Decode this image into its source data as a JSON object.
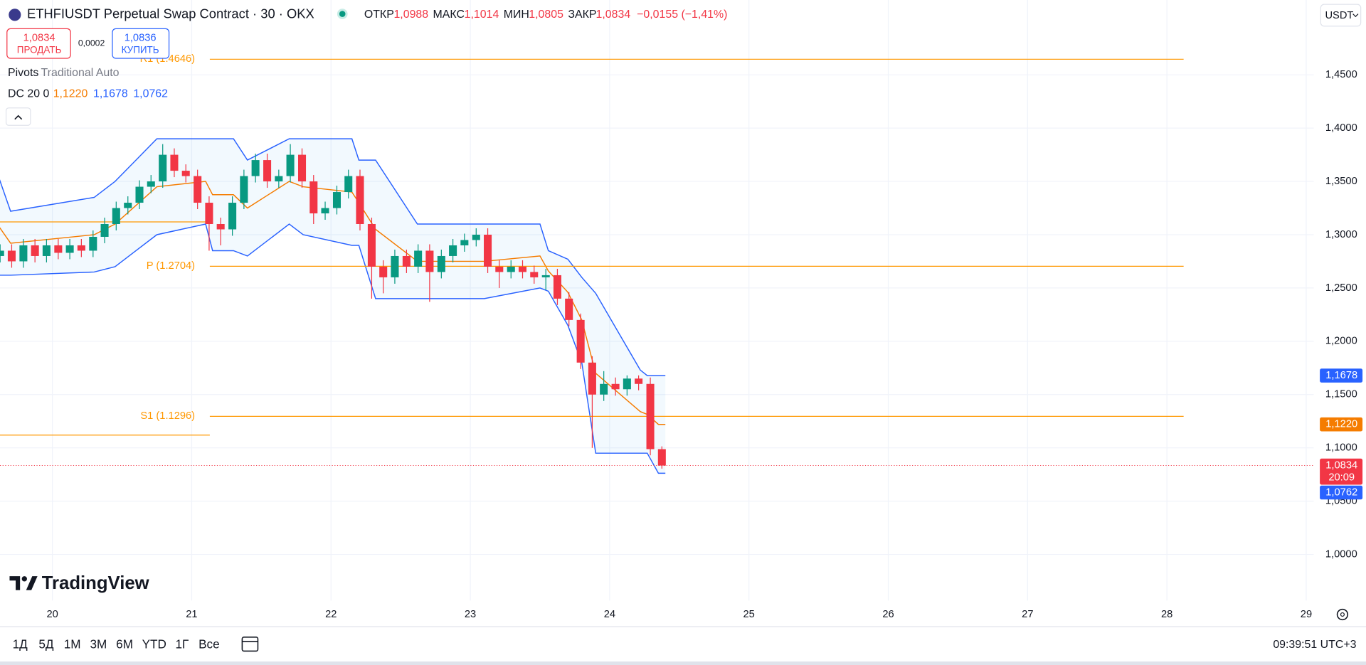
{
  "header": {
    "symbol": "ETHFIUSDT Perpetual Swap Contract · 30 · OKX",
    "open_label": "ОТКР",
    "open": "1,0988",
    "high_label": "МАКС",
    "high": "1,1014",
    "low_label": "МИН",
    "low": "1,0805",
    "close_label": "ЗАКР",
    "close": "1,0834",
    "change": "−0,0155 (−1,41%)"
  },
  "trade": {
    "sell_price": "1,0834",
    "sell": "ПРОДАТЬ",
    "spread": "0,0002",
    "buy_price": "1,0836",
    "buy": "КУПИТЬ"
  },
  "indicators": {
    "pivots_name": "Pivots",
    "pivots_params": "Traditional Auto",
    "dc_name": "DC 20 0",
    "dc_middle": "1,1220",
    "dc_upper": "1,1678",
    "dc_lower": "1,0762"
  },
  "currency": "USDT",
  "logo": "TradingView",
  "toolbar": {
    "ranges": [
      "1Д",
      "5Д",
      "1М",
      "3М",
      "6М",
      "YTD",
      "1Г",
      "Все"
    ],
    "clock": "09:39:51 UTC+3"
  },
  "chart_data": {
    "type": "candlestick",
    "up_color": "#089981",
    "down_color": "#f23645",
    "grid": true,
    "xlim": [
      19.624,
      29.054
    ],
    "ylim": [
      0.9567,
      1.5202
    ],
    "xticks": [
      20,
      21,
      22,
      23,
      24,
      25,
      26,
      27,
      28,
      29
    ],
    "yticks": [
      {
        "value": 1.0,
        "label": "1,0000"
      },
      {
        "value": 1.05,
        "label": "1,0500"
      },
      {
        "value": 1.1,
        "label": "1,1000"
      },
      {
        "value": 1.15,
        "label": "1,1500"
      },
      {
        "value": 1.2,
        "label": "1,2000"
      },
      {
        "value": 1.25,
        "label": "1,2500"
      },
      {
        "value": 1.3,
        "label": "1,3000"
      },
      {
        "value": 1.35,
        "label": "1,3500"
      },
      {
        "value": 1.4,
        "label": "1,4000"
      },
      {
        "value": 1.45,
        "label": "1,4500"
      }
    ],
    "x": [
      19.625,
      19.708,
      19.792,
      19.875,
      19.958,
      20.042,
      20.125,
      20.208,
      20.292,
      20.375,
      20.458,
      20.542,
      20.625,
      20.708,
      20.792,
      20.875,
      20.958,
      21.042,
      21.125,
      21.208,
      21.292,
      21.375,
      21.458,
      21.542,
      21.625,
      21.708,
      21.792,
      21.875,
      21.958,
      22.042,
      22.125,
      22.208,
      22.292,
      22.375,
      22.458,
      22.542,
      22.625,
      22.708,
      22.792,
      22.875,
      22.958,
      23.042,
      23.125,
      23.208,
      23.292,
      23.375,
      23.458,
      23.542,
      23.625,
      23.708,
      23.792,
      23.875,
      23.958,
      24.042,
      24.125,
      24.208,
      24.292,
      24.375
    ],
    "open": [
      1.28,
      1.285,
      1.275,
      1.29,
      1.28,
      1.29,
      1.283,
      1.29,
      1.285,
      1.298,
      1.31,
      1.325,
      1.33,
      1.345,
      1.35,
      1.375,
      1.36,
      1.355,
      1.33,
      1.31,
      1.305,
      1.33,
      1.355,
      1.37,
      1.35,
      1.355,
      1.375,
      1.35,
      1.32,
      1.325,
      1.34,
      1.355,
      1.31,
      1.27,
      1.26,
      1.28,
      1.27,
      1.285,
      1.265,
      1.28,
      1.29,
      1.295,
      1.3,
      1.27,
      1.265,
      1.27,
      1.265,
      1.26,
      1.262,
      1.24,
      1.22,
      1.18,
      1.15,
      1.16,
      1.155,
      1.165,
      1.16,
      1.0988
    ],
    "high": [
      1.291,
      1.291,
      1.296,
      1.296,
      1.296,
      1.296,
      1.296,
      1.296,
      1.304,
      1.316,
      1.331,
      1.336,
      1.351,
      1.356,
      1.385,
      1.381,
      1.366,
      1.361,
      1.336,
      1.316,
      1.336,
      1.361,
      1.376,
      1.376,
      1.361,
      1.385,
      1.381,
      1.356,
      1.331,
      1.346,
      1.361,
      1.361,
      1.316,
      1.276,
      1.286,
      1.286,
      1.291,
      1.291,
      1.286,
      1.296,
      1.301,
      1.306,
      1.306,
      1.276,
      1.276,
      1.276,
      1.271,
      1.268,
      1.268,
      1.246,
      1.226,
      1.186,
      1.172,
      1.166,
      1.168,
      1.168,
      1.166,
      1.1014
    ],
    "low": [
      1.274,
      1.269,
      1.269,
      1.274,
      1.274,
      1.277,
      1.277,
      1.279,
      1.279,
      1.292,
      1.304,
      1.319,
      1.324,
      1.339,
      1.344,
      1.354,
      1.349,
      1.324,
      1.285,
      1.29,
      1.299,
      1.324,
      1.349,
      1.344,
      1.344,
      1.349,
      1.344,
      1.31,
      1.314,
      1.319,
      1.334,
      1.304,
      1.24,
      1.245,
      1.254,
      1.264,
      1.264,
      1.237,
      1.259,
      1.274,
      1.284,
      1.289,
      1.264,
      1.25,
      1.259,
      1.259,
      1.254,
      1.248,
      1.234,
      1.214,
      1.174,
      1.1,
      1.144,
      1.149,
      1.149,
      1.154,
      1.093,
      1.0805
    ],
    "close": [
      1.285,
      1.275,
      1.29,
      1.28,
      1.29,
      1.283,
      1.29,
      1.285,
      1.298,
      1.31,
      1.325,
      1.33,
      1.345,
      1.35,
      1.375,
      1.36,
      1.355,
      1.33,
      1.31,
      1.305,
      1.33,
      1.355,
      1.37,
      1.35,
      1.355,
      1.375,
      1.35,
      1.32,
      1.325,
      1.34,
      1.355,
      1.31,
      1.27,
      1.26,
      1.28,
      1.27,
      1.285,
      1.265,
      1.28,
      1.29,
      1.295,
      1.3,
      1.27,
      1.265,
      1.27,
      1.265,
      1.26,
      1.262,
      1.24,
      1.22,
      1.18,
      1.15,
      1.16,
      1.155,
      1.165,
      1.16,
      1.0988,
      1.0834
    ],
    "channel": {
      "band_color": "#2962ff",
      "middle_color": "#f57c00",
      "x": [
        19.62,
        19.7,
        20.3,
        20.45,
        20.6,
        20.75,
        21.1,
        21.15,
        21.3,
        21.4,
        21.7,
        21.8,
        22.15,
        22.2,
        22.32,
        22.62,
        22.8,
        23.1,
        23.5,
        23.56,
        23.7,
        23.8,
        23.9,
        24.1,
        24.22,
        24.27,
        24.35,
        24.4
      ],
      "upper": [
        1.352,
        1.322,
        1.335,
        1.35,
        1.37,
        1.39,
        1.39,
        1.39,
        1.39,
        1.37,
        1.39,
        1.39,
        1.39,
        1.37,
        1.37,
        1.31,
        1.31,
        1.31,
        1.31,
        1.285,
        1.277,
        1.26,
        1.245,
        1.2,
        1.173,
        1.1678,
        1.1678,
        1.1678
      ],
      "lower": [
        1.262,
        1.262,
        1.265,
        1.27,
        1.285,
        1.3,
        1.31,
        1.285,
        1.285,
        1.28,
        1.31,
        1.3,
        1.29,
        1.29,
        1.24,
        1.24,
        1.24,
        1.24,
        1.25,
        1.247,
        1.215,
        1.18,
        1.095,
        1.095,
        1.095,
        1.095,
        1.0762,
        1.0762
      ],
      "middle": [
        1.307,
        1.292,
        1.3,
        1.31,
        1.3275,
        1.345,
        1.35,
        1.3375,
        1.3375,
        1.325,
        1.35,
        1.345,
        1.34,
        1.33,
        1.305,
        1.275,
        1.275,
        1.275,
        1.28,
        1.266,
        1.246,
        1.22,
        1.17,
        1.1475,
        1.134,
        1.1314,
        1.122,
        1.122
      ]
    },
    "pivots": {
      "color": "#ff9800",
      "start": 21.13,
      "end": 28.12,
      "previous": [
        1.312,
        1.112
      ],
      "levels": [
        {
          "value": 1.4646,
          "label": "R1 (1.4646)"
        },
        {
          "value": 1.2704,
          "label": "P (1.2704)"
        },
        {
          "value": 1.1296,
          "label": "S1 (1.1296)"
        }
      ]
    },
    "price_badges": [
      {
        "value": 1.1678,
        "label": "1,1678",
        "color": "#2962ff"
      },
      {
        "value": 1.122,
        "label": "1,1220",
        "color": "#f57c00"
      },
      {
        "value": 1.0834,
        "label": "1,0834",
        "color": "#f23645",
        "countdown": "20:09"
      },
      {
        "value": 1.0762,
        "label": "1,0762",
        "color": "#2962ff"
      }
    ]
  }
}
